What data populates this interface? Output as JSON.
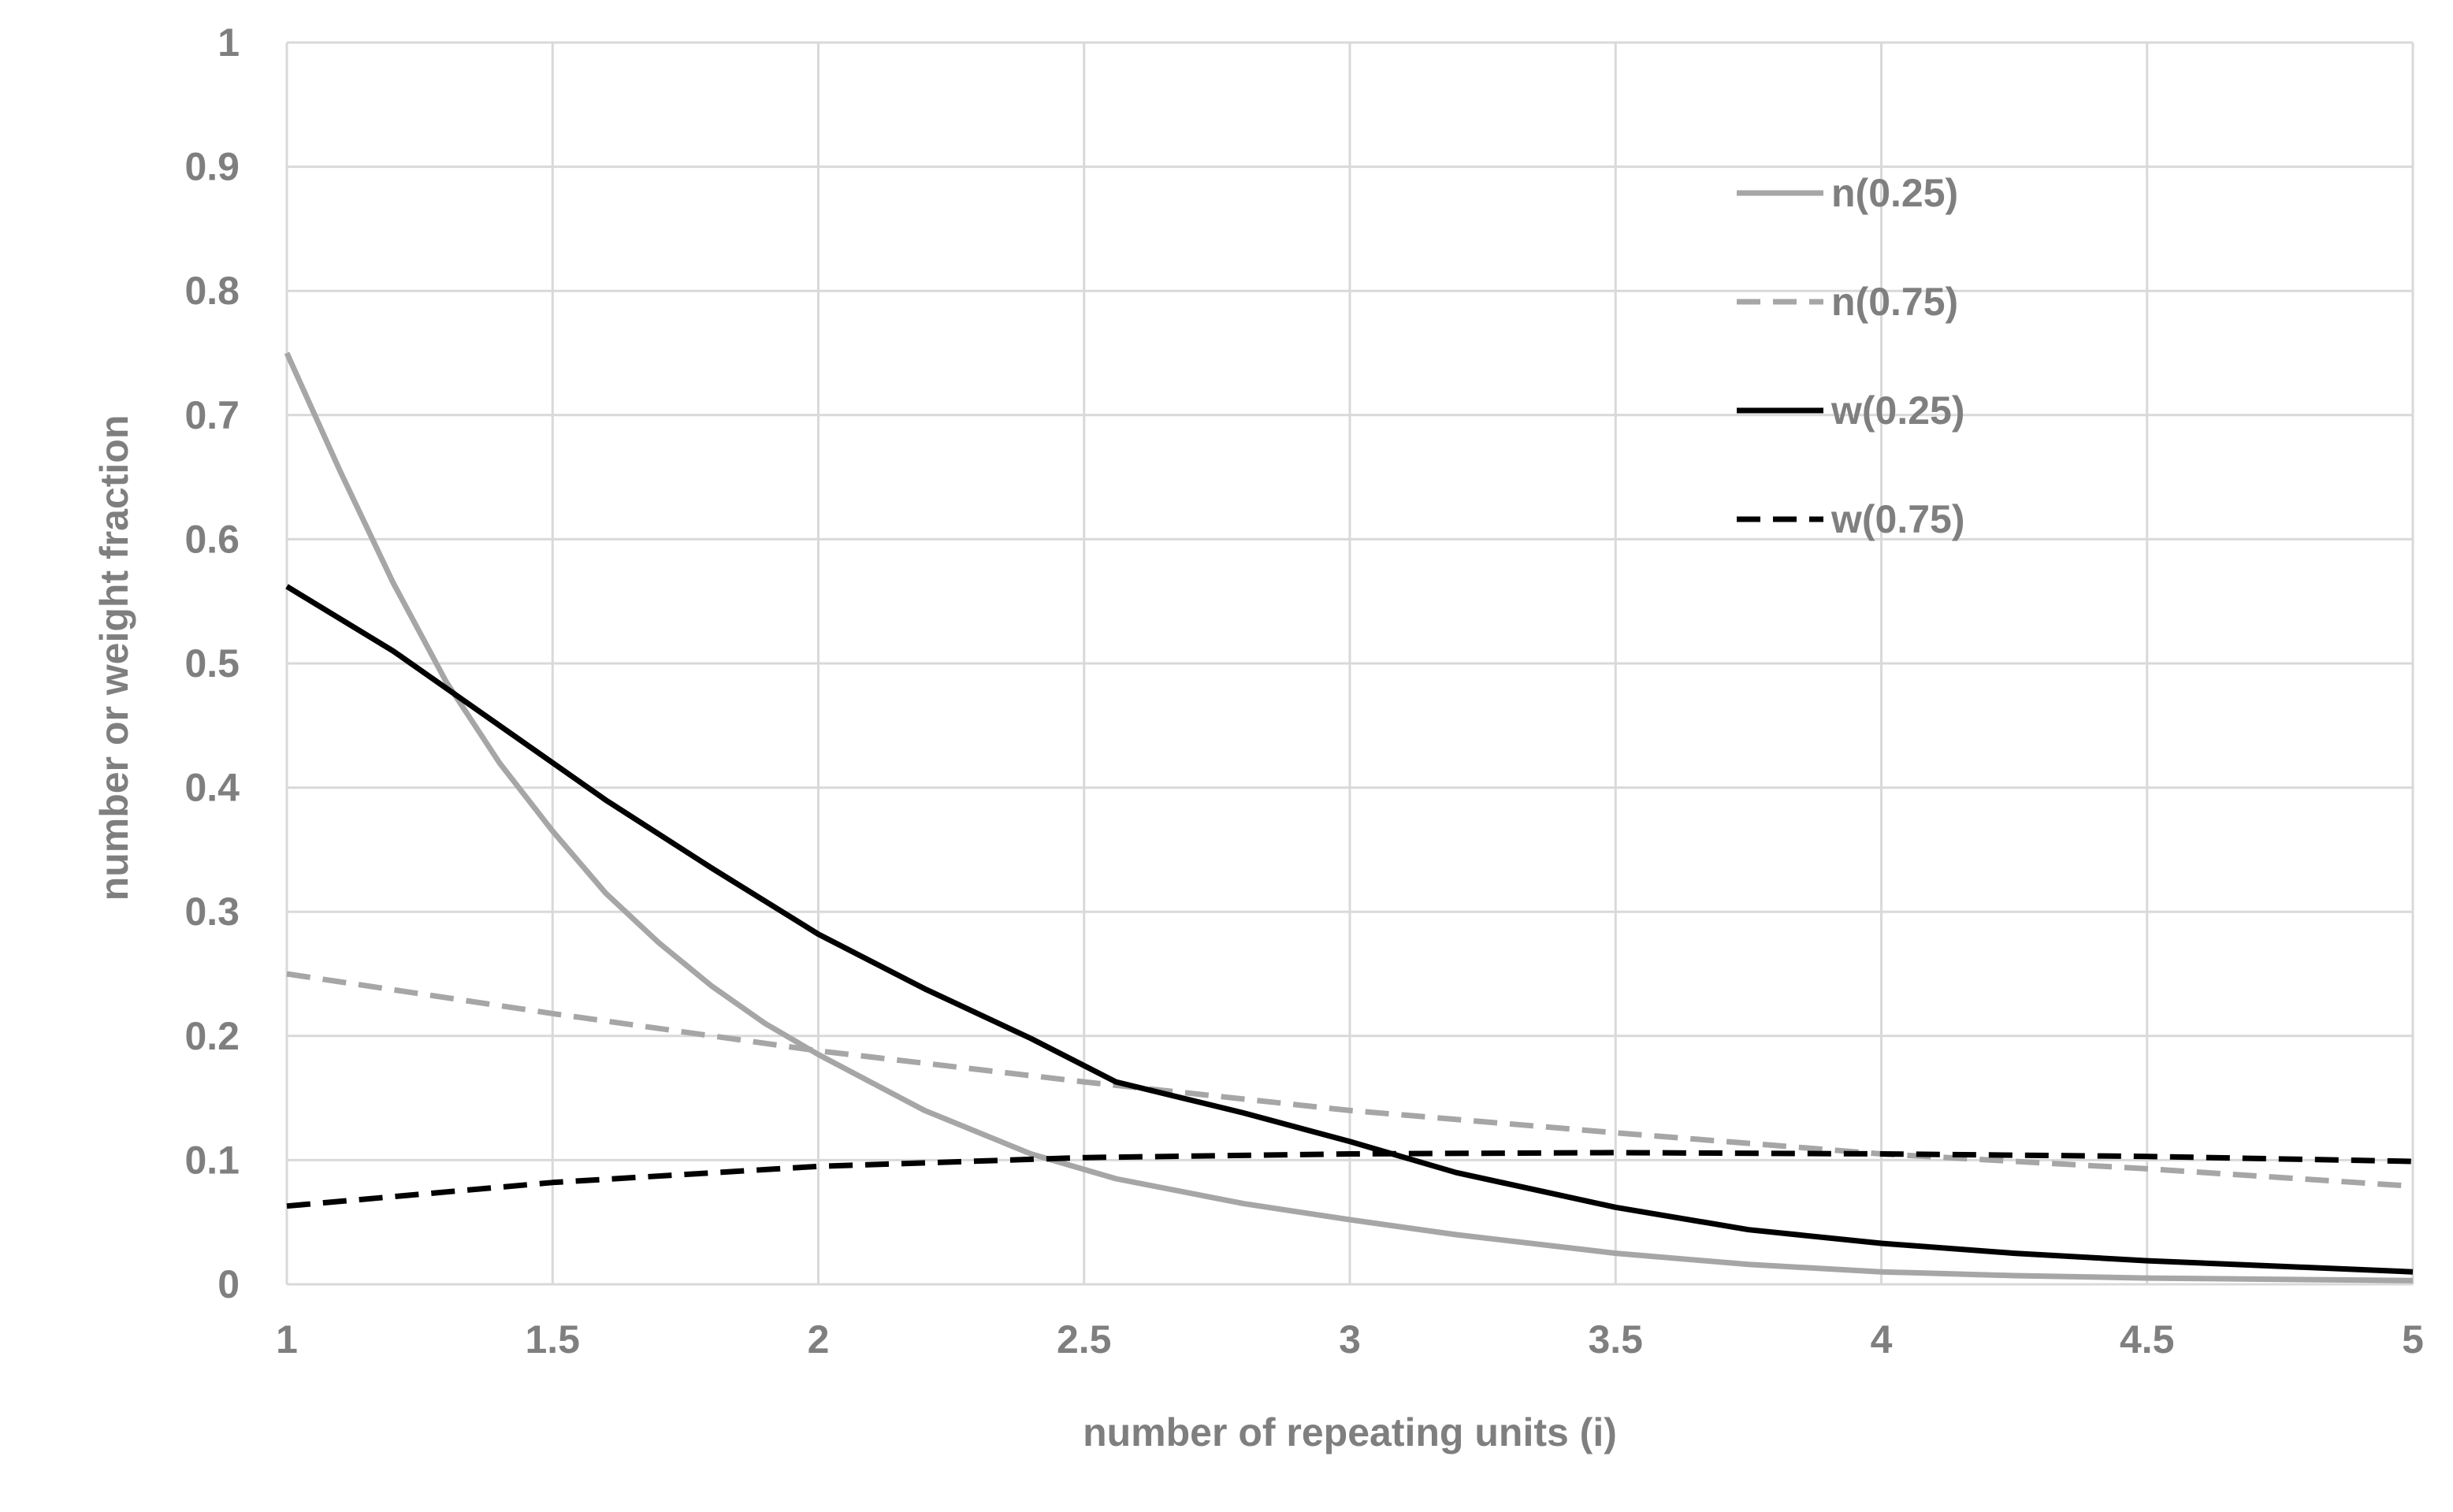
{
  "chart_data": {
    "type": "line",
    "title": "",
    "xlabel": "number of repeating units (i)",
    "ylabel": "number or weight fraction",
    "xlim": [
      1,
      5
    ],
    "ylim": [
      0,
      1
    ],
    "xticks": [
      "1",
      "1.5",
      "2",
      "2.5",
      "3",
      "3.5",
      "4",
      "4.5",
      "5"
    ],
    "yticks": [
      "0",
      "0.1",
      "0.2",
      "0.3",
      "0.4",
      "0.5",
      "0.6",
      "0.7",
      "0.8",
      "0.9",
      "1"
    ],
    "grid": true,
    "legend_position": "top-right",
    "series": [
      {
        "name": "n(0.25)",
        "color": "#a6a6a6",
        "dash": "solid",
        "x": [
          1,
          1.1,
          1.2,
          1.3,
          1.4,
          1.5,
          1.6,
          1.7,
          1.8,
          1.9,
          2,
          2.2,
          2.4,
          2.56,
          2.8,
          3,
          3.2,
          3.5,
          3.75,
          4,
          4.25,
          4.5,
          5
        ],
        "y": [
          0.75,
          0.655,
          0.565,
          0.485,
          0.42,
          0.365,
          0.315,
          0.275,
          0.24,
          0.21,
          0.185,
          0.14,
          0.105,
          0.085,
          0.065,
          0.052,
          0.04,
          0.025,
          0.016,
          0.01,
          0.007,
          0.005,
          0.003
        ]
      },
      {
        "name": "n(0.75)",
        "color": "#a6a6a6",
        "dash": "dashed",
        "x": [
          1,
          1.5,
          2,
          2.5,
          3,
          3.5,
          4,
          4.5,
          5
        ],
        "y": [
          0.25,
          0.218,
          0.188,
          0.163,
          0.14,
          0.122,
          0.105,
          0.093,
          0.079
        ]
      },
      {
        "name": "w(0.25)",
        "color": "#000000",
        "dash": "solid",
        "x": [
          1,
          1.2,
          1.4,
          1.6,
          1.8,
          2,
          2.2,
          2.4,
          2.56,
          2.8,
          3,
          3.2,
          3.5,
          3.75,
          4,
          4.25,
          4.5,
          5
        ],
        "y": [
          0.562,
          0.51,
          0.45,
          0.39,
          0.335,
          0.282,
          0.238,
          0.198,
          0.163,
          0.138,
          0.115,
          0.09,
          0.062,
          0.044,
          0.033,
          0.025,
          0.019,
          0.01
        ]
      },
      {
        "name": "w(0.75)",
        "color": "#000000",
        "dash": "dashed",
        "x": [
          1,
          1.5,
          2,
          2.5,
          3,
          3.5,
          4,
          4.5,
          5
        ],
        "y": [
          0.063,
          0.082,
          0.095,
          0.102,
          0.105,
          0.106,
          0.105,
          0.103,
          0.099
        ]
      }
    ]
  }
}
